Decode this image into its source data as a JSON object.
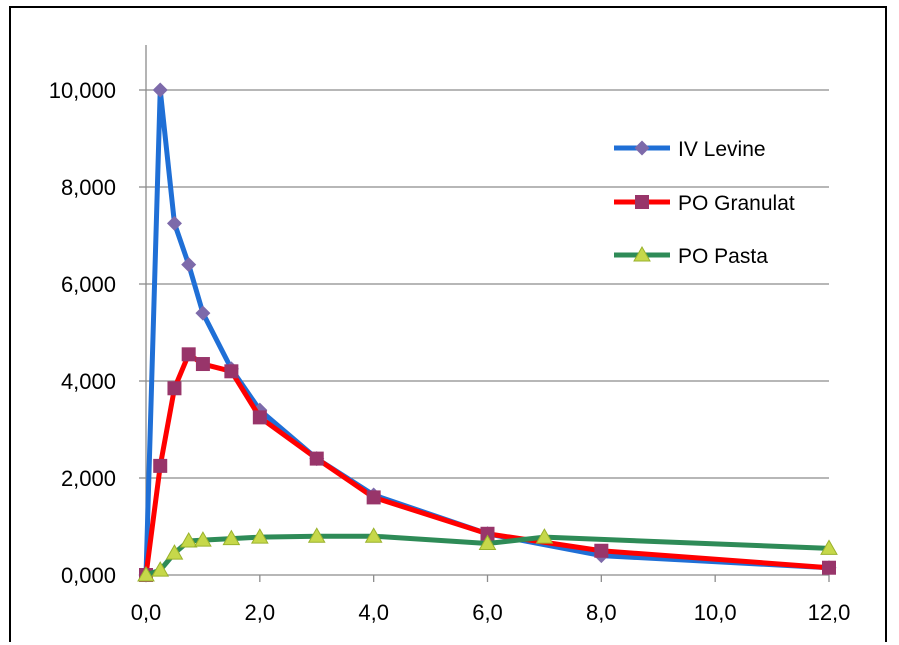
{
  "chart_data": {
    "type": "line",
    "title": "",
    "xlabel": "",
    "ylabel": "",
    "xlim": [
      0,
      12
    ],
    "ylim": [
      0,
      10
    ],
    "x_ticks": [
      0,
      2,
      4,
      6,
      8,
      10,
      12
    ],
    "x_tick_labels": [
      "0,0",
      "2,0",
      "4,0",
      "6,0",
      "8,0",
      "10,0",
      "12,0"
    ],
    "y_ticks": [
      0,
      2,
      4,
      6,
      8,
      10
    ],
    "y_tick_labels": [
      "0,000",
      "2,000",
      "4,000",
      "6,000",
      "8,000",
      "10,000"
    ],
    "grid": "horizontal",
    "legend_position": "right",
    "series": [
      {
        "name": "IV Levine",
        "color": "#1f6fd6",
        "marker_color": "#7d6aaa",
        "marker": "diamond",
        "x": [
          0,
          0.25,
          0.5,
          0.75,
          1,
          1.5,
          2,
          3,
          4,
          6,
          8,
          12
        ],
        "y": [
          0,
          10.0,
          7.25,
          6.4,
          5.4,
          4.25,
          3.4,
          2.4,
          1.65,
          0.85,
          0.4,
          0.15
        ]
      },
      {
        "name": "PO Granulat",
        "color": "#ff0000",
        "marker_color": "#98356a",
        "marker": "square",
        "x": [
          0,
          0.25,
          0.5,
          0.75,
          1,
          1.5,
          2,
          3,
          4,
          6,
          8,
          12
        ],
        "y": [
          0,
          2.25,
          3.85,
          4.55,
          4.35,
          4.2,
          3.25,
          2.4,
          1.6,
          0.85,
          0.5,
          0.15
        ]
      },
      {
        "name": "PO Pasta",
        "color": "#2e8b57",
        "marker_color": "#c6d84a",
        "marker": "triangle",
        "x": [
          0,
          0.25,
          0.5,
          0.75,
          1,
          1.5,
          2,
          3,
          4,
          6,
          7,
          12
        ],
        "y": [
          0,
          0.1,
          0.45,
          0.7,
          0.72,
          0.75,
          0.78,
          0.8,
          0.8,
          0.65,
          0.78,
          0.55
        ]
      }
    ]
  }
}
